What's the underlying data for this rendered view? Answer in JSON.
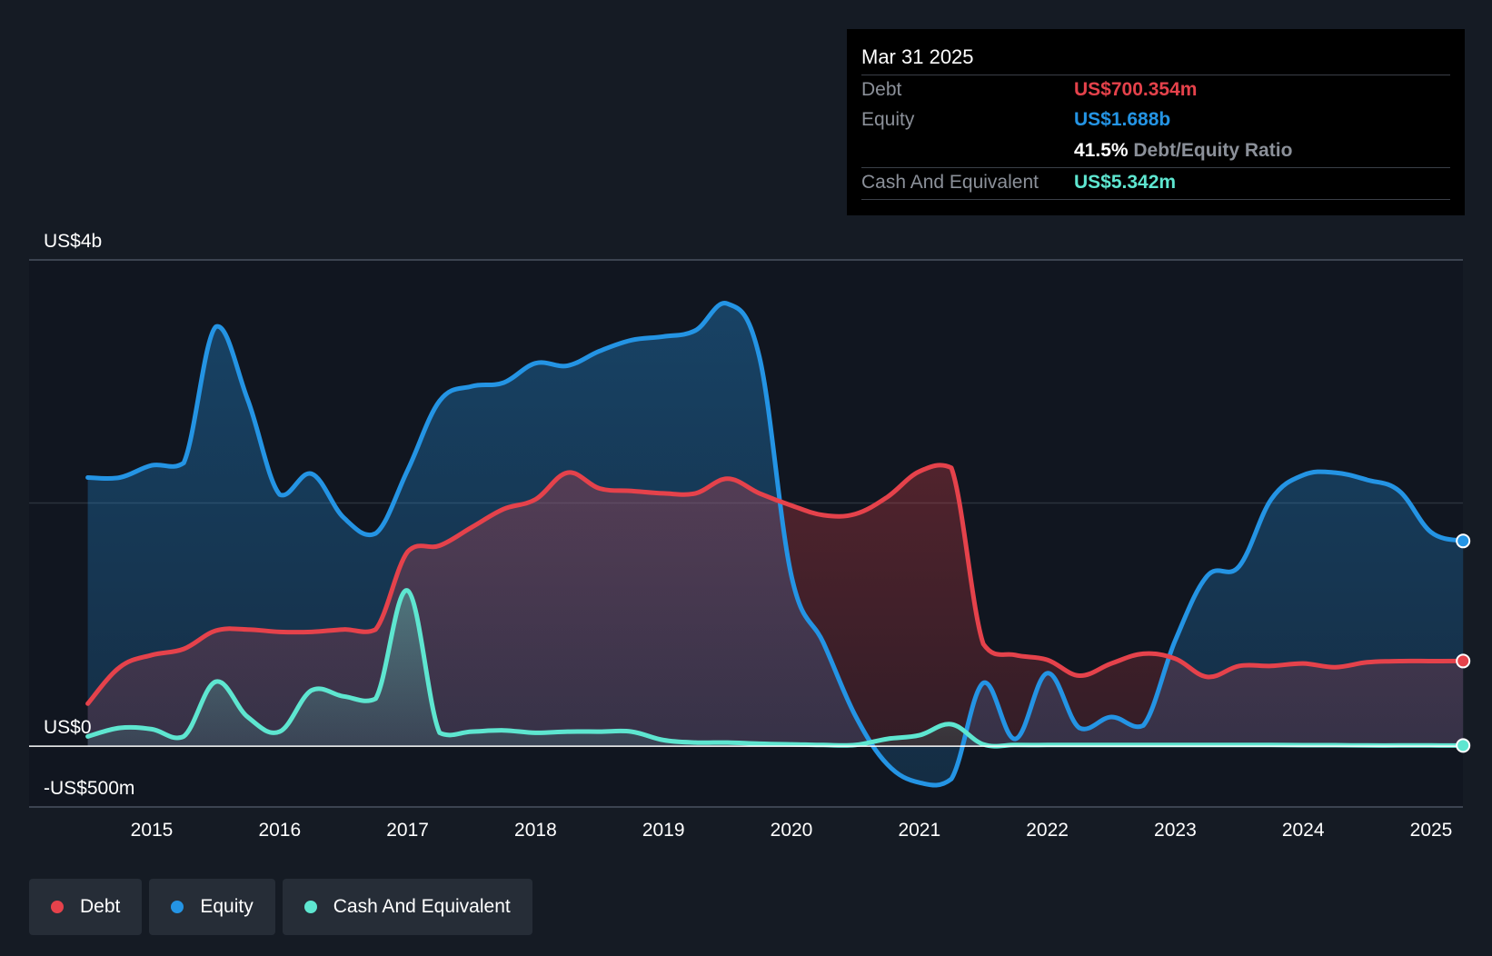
{
  "colors": {
    "debt": "#e5424b",
    "equity": "#2494e4",
    "cash": "#5ee6d0",
    "background": "#151b24",
    "plot_background": "#111620"
  },
  "tooltip": {
    "date": "Mar 31 2025",
    "debt_label": "Debt",
    "debt_value": "US$700.354m",
    "equity_label": "Equity",
    "equity_value": "US$1.688b",
    "ratio_value": "41.5%",
    "ratio_label": "Debt/Equity Ratio",
    "cash_label": "Cash And Equivalent",
    "cash_value": "US$5.342m"
  },
  "legend": [
    {
      "key": "debt",
      "label": "Debt"
    },
    {
      "key": "equity",
      "label": "Equity"
    },
    {
      "key": "cash",
      "label": "Cash And Equivalent"
    }
  ],
  "chart_data": {
    "type": "area",
    "title": "",
    "xlabel": "",
    "ylabel": "",
    "x_unit": "year",
    "xlim": [
      2014.0,
      2025.25
    ],
    "ylim": [
      -500,
      4000
    ],
    "y_unit": "US$ millions",
    "y_tick_labels": [
      {
        "value": 4000,
        "label": "US$4b"
      },
      {
        "value": 0,
        "label": "US$0"
      },
      {
        "value": -500,
        "label": "-US$500m"
      }
    ],
    "x_ticks": [
      2015,
      2016,
      2017,
      2018,
      2019,
      2020,
      2021,
      2022,
      2023,
      2024,
      2025
    ],
    "x_tick_labels": [
      "2015",
      "2016",
      "2017",
      "2018",
      "2019",
      "2020",
      "2021",
      "2022",
      "2023",
      "2024",
      "2025"
    ],
    "grid": "horizontal at 0, 2000 and 4000",
    "legend_position": "bottom-left",
    "series": [
      {
        "name": "Debt",
        "key": "debt",
        "points": [
          [
            2014.5,
            350
          ],
          [
            2014.75,
            650
          ],
          [
            2015.0,
            750
          ],
          [
            2015.25,
            800
          ],
          [
            2015.5,
            950
          ],
          [
            2015.75,
            960
          ],
          [
            2016.0,
            940
          ],
          [
            2016.25,
            940
          ],
          [
            2016.5,
            960
          ],
          [
            2016.75,
            960
          ],
          [
            2017.0,
            1600
          ],
          [
            2017.25,
            1650
          ],
          [
            2017.5,
            1800
          ],
          [
            2017.75,
            1950
          ],
          [
            2018.0,
            2030
          ],
          [
            2018.25,
            2250
          ],
          [
            2018.5,
            2120
          ],
          [
            2018.75,
            2100
          ],
          [
            2019.0,
            2080
          ],
          [
            2019.25,
            2080
          ],
          [
            2019.5,
            2200
          ],
          [
            2019.75,
            2080
          ],
          [
            2020.0,
            1980
          ],
          [
            2020.25,
            1900
          ],
          [
            2020.5,
            1910
          ],
          [
            2020.75,
            2050
          ],
          [
            2021.0,
            2260
          ],
          [
            2021.25,
            2290
          ],
          [
            2021.5,
            840
          ],
          [
            2021.75,
            750
          ],
          [
            2022.0,
            710
          ],
          [
            2022.25,
            580
          ],
          [
            2022.5,
            680
          ],
          [
            2022.75,
            760
          ],
          [
            2023.0,
            720
          ],
          [
            2023.25,
            570
          ],
          [
            2023.5,
            660
          ],
          [
            2023.75,
            660
          ],
          [
            2024.0,
            680
          ],
          [
            2024.25,
            650
          ],
          [
            2024.5,
            690
          ],
          [
            2024.75,
            700
          ],
          [
            2025.0,
            700
          ],
          [
            2025.25,
            700.354
          ]
        ]
      },
      {
        "name": "Equity",
        "key": "equity",
        "points": [
          [
            2014.5,
            2210
          ],
          [
            2014.75,
            2210
          ],
          [
            2015.0,
            2310
          ],
          [
            2015.25,
            2330
          ],
          [
            2015.5,
            3450
          ],
          [
            2015.75,
            2850
          ],
          [
            2016.0,
            2070
          ],
          [
            2016.25,
            2240
          ],
          [
            2016.5,
            1880
          ],
          [
            2016.75,
            1750
          ],
          [
            2017.0,
            2270
          ],
          [
            2017.25,
            2840
          ],
          [
            2017.5,
            2960
          ],
          [
            2017.75,
            2990
          ],
          [
            2018.0,
            3150
          ],
          [
            2018.25,
            3130
          ],
          [
            2018.5,
            3250
          ],
          [
            2018.75,
            3340
          ],
          [
            2019.0,
            3370
          ],
          [
            2019.25,
            3420
          ],
          [
            2019.5,
            3640
          ],
          [
            2019.75,
            3200
          ],
          [
            2020.0,
            1400
          ],
          [
            2020.25,
            850
          ],
          [
            2020.5,
            250
          ],
          [
            2020.75,
            -150
          ],
          [
            2021.0,
            -300
          ],
          [
            2021.25,
            -270
          ],
          [
            2021.5,
            520
          ],
          [
            2021.75,
            60
          ],
          [
            2022.0,
            600
          ],
          [
            2022.25,
            150
          ],
          [
            2022.5,
            240
          ],
          [
            2022.75,
            170
          ],
          [
            2023.0,
            870
          ],
          [
            2023.25,
            1400
          ],
          [
            2023.5,
            1480
          ],
          [
            2023.75,
            2030
          ],
          [
            2024.0,
            2230
          ],
          [
            2024.25,
            2250
          ],
          [
            2024.5,
            2190
          ],
          [
            2024.75,
            2100
          ],
          [
            2025.0,
            1760
          ],
          [
            2025.25,
            1688
          ]
        ]
      },
      {
        "name": "Cash And Equivalent",
        "key": "cash",
        "points": [
          [
            2014.5,
            80
          ],
          [
            2014.75,
            150
          ],
          [
            2015.0,
            140
          ],
          [
            2015.25,
            80
          ],
          [
            2015.5,
            530
          ],
          [
            2015.75,
            240
          ],
          [
            2016.0,
            120
          ],
          [
            2016.25,
            460
          ],
          [
            2016.5,
            410
          ],
          [
            2016.75,
            390
          ],
          [
            2017.0,
            1280
          ],
          [
            2017.25,
            110
          ],
          [
            2017.5,
            120
          ],
          [
            2017.75,
            130
          ],
          [
            2018.0,
            110
          ],
          [
            2018.25,
            120
          ],
          [
            2018.5,
            120
          ],
          [
            2018.75,
            120
          ],
          [
            2019.0,
            50
          ],
          [
            2019.25,
            30
          ],
          [
            2019.5,
            30
          ],
          [
            2019.75,
            20
          ],
          [
            2020.0,
            15
          ],
          [
            2020.25,
            10
          ],
          [
            2020.5,
            10
          ],
          [
            2020.75,
            60
          ],
          [
            2021.0,
            90
          ],
          [
            2021.25,
            180
          ],
          [
            2021.5,
            15
          ],
          [
            2021.75,
            10
          ],
          [
            2022.0,
            10
          ],
          [
            2022.25,
            10
          ],
          [
            2022.5,
            10
          ],
          [
            2022.75,
            10
          ],
          [
            2023.0,
            10
          ],
          [
            2023.25,
            10
          ],
          [
            2023.5,
            10
          ],
          [
            2023.75,
            10
          ],
          [
            2024.0,
            8
          ],
          [
            2024.25,
            8
          ],
          [
            2024.5,
            6
          ],
          [
            2024.75,
            6
          ],
          [
            2025.0,
            6
          ],
          [
            2025.25,
            5.342
          ]
        ]
      }
    ]
  }
}
